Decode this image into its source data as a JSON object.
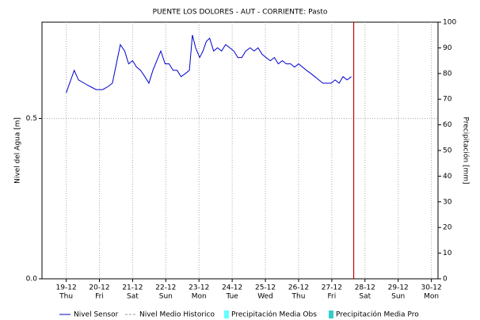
{
  "chart_data": {
    "type": "line",
    "title": "PUENTE LOS DOLORES - AUT - CORRIENTE: Pasto",
    "y_label": "Nivel del Agua [m]",
    "y2_label": "Precipitación [mm]",
    "xlim": [
      18.27,
      30.2
    ],
    "xticks": [
      {
        "value": 19,
        "label": "19-12"
      },
      {
        "value": 20,
        "label": "20-12"
      },
      {
        "value": 21,
        "label": "21-12"
      },
      {
        "value": 22,
        "label": "22-12"
      },
      {
        "value": 23,
        "label": "23-12"
      },
      {
        "value": 24,
        "label": "24-12"
      },
      {
        "value": 25,
        "label": "25-12"
      },
      {
        "value": 26,
        "label": "26-12"
      },
      {
        "value": 27,
        "label": "27-12"
      },
      {
        "value": 28,
        "label": "28-12"
      },
      {
        "value": 29,
        "label": "29-12"
      },
      {
        "value": 30,
        "label": "30-12"
      }
    ],
    "xtick_weekdays": [
      "Thu",
      "Fri",
      "Sat",
      "Sun",
      "Mon",
      "Tue",
      "Wed",
      "Thu",
      "Fri",
      "Sat",
      "Sun",
      "Mon"
    ],
    "ylim": [
      0,
      0.8
    ],
    "yticks": [
      {
        "value": 0,
        "label": "0.0"
      },
      0.5
    ],
    "y2lim": [
      0,
      100
    ],
    "y2ticks": [
      0,
      10,
      20,
      30,
      40,
      50,
      60,
      70,
      80,
      90,
      100
    ],
    "grid": true,
    "marker_x": 27.66,
    "marker_color": "#cc0000",
    "series": [
      {
        "name": "Nivel Sensor",
        "color": "#0000cc",
        "style": "line",
        "x": [
          19.0,
          19.24,
          19.37,
          19.54,
          19.71,
          19.9,
          20.1,
          20.27,
          20.39,
          20.51,
          20.63,
          20.76,
          20.88,
          21.0,
          21.12,
          21.24,
          21.37,
          21.49,
          21.61,
          21.73,
          21.85,
          21.98,
          22.1,
          22.22,
          22.34,
          22.46,
          22.59,
          22.71,
          22.8,
          22.9,
          23.02,
          23.12,
          23.22,
          23.32,
          23.44,
          23.56,
          23.68,
          23.8,
          23.93,
          24.05,
          24.17,
          24.29,
          24.41,
          24.54,
          24.66,
          24.78,
          24.9,
          25.02,
          25.15,
          25.27,
          25.39,
          25.51,
          25.63,
          25.76,
          25.88,
          26.0,
          26.12,
          26.24,
          26.37,
          26.49,
          26.61,
          26.73,
          26.85,
          26.98,
          27.1,
          27.22,
          27.34,
          27.46,
          27.59
        ],
        "values": [
          0.58,
          0.65,
          0.62,
          0.61,
          0.6,
          0.59,
          0.59,
          0.6,
          0.61,
          0.67,
          0.73,
          0.71,
          0.67,
          0.68,
          0.66,
          0.65,
          0.63,
          0.61,
          0.65,
          0.68,
          0.71,
          0.67,
          0.67,
          0.65,
          0.65,
          0.63,
          0.64,
          0.65,
          0.76,
          0.72,
          0.69,
          0.71,
          0.74,
          0.75,
          0.71,
          0.72,
          0.71,
          0.73,
          0.72,
          0.71,
          0.69,
          0.69,
          0.71,
          0.72,
          0.71,
          0.72,
          0.7,
          0.69,
          0.68,
          0.69,
          0.67,
          0.68,
          0.67,
          0.67,
          0.66,
          0.67,
          0.66,
          0.65,
          0.64,
          0.63,
          0.62,
          0.61,
          0.61,
          0.61,
          0.62,
          0.61,
          0.63,
          0.62,
          0.63
        ]
      },
      {
        "name": "Nivel Medio Historico",
        "color": "#999999",
        "style": "dashed",
        "values": []
      },
      {
        "name": "Precipitación Media Obs",
        "color": "#66ffff",
        "style": "box",
        "values": []
      },
      {
        "name": "Precipitación Media Pro",
        "color": "#33cccc",
        "style": "box",
        "values": []
      }
    ]
  }
}
